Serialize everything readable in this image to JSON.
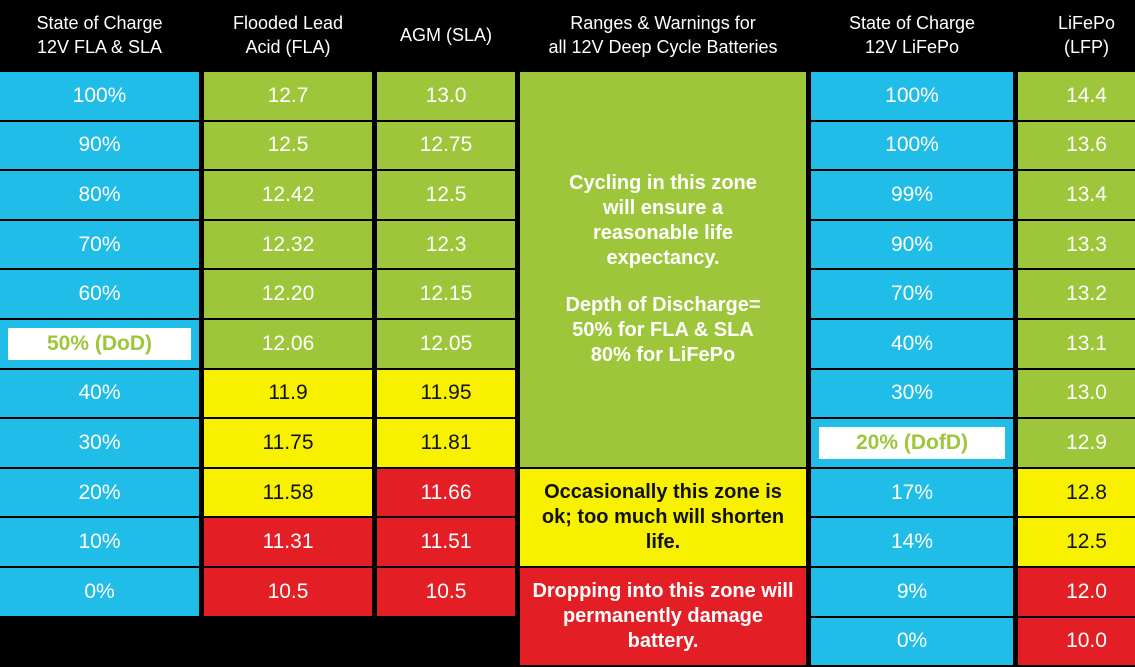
{
  "headers": {
    "soc_fla": "State of Charge\n12V FLA & SLA",
    "fla": "Flooded Lead\nAcid (FLA)",
    "agm": "AGM (SLA)",
    "ranges": "Ranges & Warnings for\nall 12V Deep Cycle Batteries",
    "soc_lfp": "State of Charge\n12V LiFePo",
    "lfp": "LiFePo\n(LFP)"
  },
  "soc_fla": [
    "100%",
    "90%",
    "80%",
    "70%",
    "60%",
    "50% (DoD)",
    "40%",
    "30%",
    "20%",
    "10%",
    "0%"
  ],
  "fla": [
    "12.7",
    "12.5",
    "12.42",
    "12.32",
    "12.20",
    "12.06",
    "11.9",
    "11.75",
    "11.58",
    "11.31",
    "10.5"
  ],
  "agm": [
    "13.0",
    "12.75",
    "12.5",
    "12.3",
    "12.15",
    "12.05",
    "11.95",
    "11.81",
    "11.66",
    "11.51",
    "10.5"
  ],
  "soc_lfp": [
    "100%",
    "100%",
    "99%",
    "90%",
    "70%",
    "40%",
    "30%",
    "20% (DofD)",
    "17%",
    "14%",
    "9%",
    "0%"
  ],
  "lfp": [
    "14.4",
    "13.6",
    "13.4",
    "13.3",
    "13.2",
    "13.1",
    "13.0",
    "12.9",
    "12.8",
    "12.5",
    "12.0",
    "10.0"
  ],
  "zones": {
    "green_line1": "Cycling in this zone will ensure a reasonable life expectancy.",
    "green_line2": "Depth of Discharge= 50% for FLA & SLA 80% for LiFePo",
    "yellow": "Occasionally this zone is ok; too much will shorten life.",
    "red": "Dropping into this zone will permanently damage battery."
  },
  "colors": {
    "blue": "#1fbde8",
    "green": "#9dc63b",
    "yellow": "#f7f100",
    "red": "#e31e24",
    "header_bg": "#000000"
  }
}
